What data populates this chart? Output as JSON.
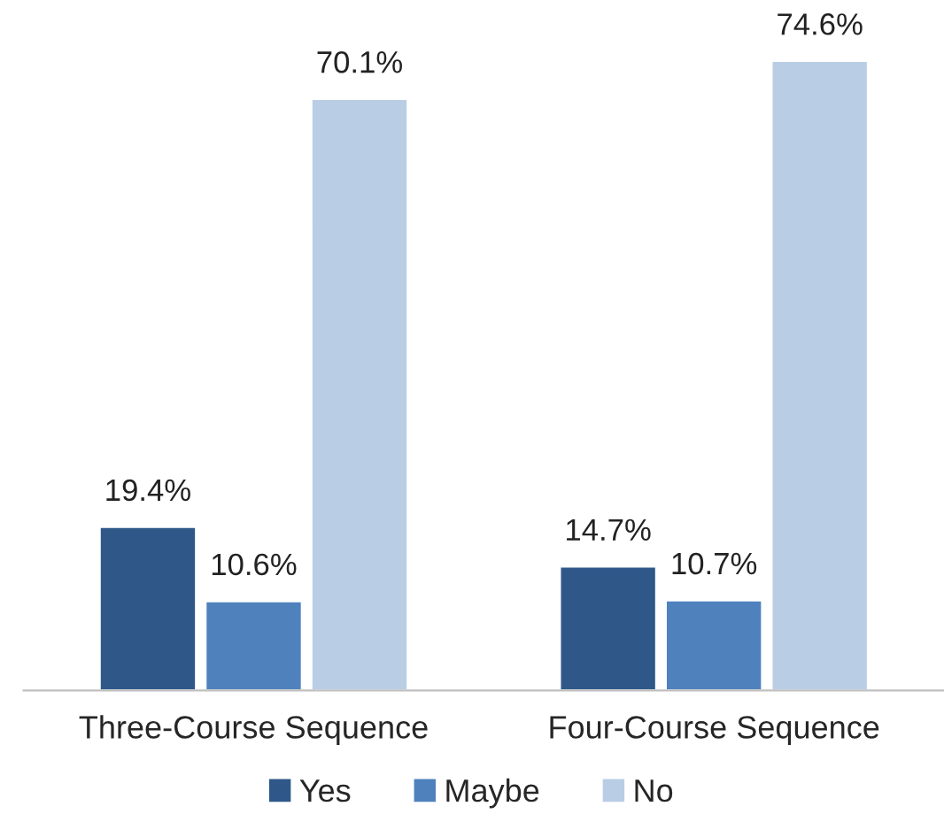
{
  "chart_data": {
    "type": "bar",
    "categories": [
      "Three-Course Sequence",
      "Four-Course Sequence"
    ],
    "series": [
      {
        "name": "Yes",
        "color": "#2f5889",
        "values": [
          19.4,
          14.7
        ],
        "value_labels": [
          "19.4%",
          "14.7%"
        ]
      },
      {
        "name": "Maybe",
        "color": "#4f81bd",
        "values": [
          10.6,
          10.7
        ],
        "value_labels": [
          "10.6%",
          "10.7%"
        ]
      },
      {
        "name": "No",
        "color": "#b9cde5",
        "values": [
          70.1,
          74.6
        ],
        "value_labels": [
          "70.1%",
          "74.6%"
        ]
      }
    ],
    "legend": "bottom",
    "grid": false
  }
}
